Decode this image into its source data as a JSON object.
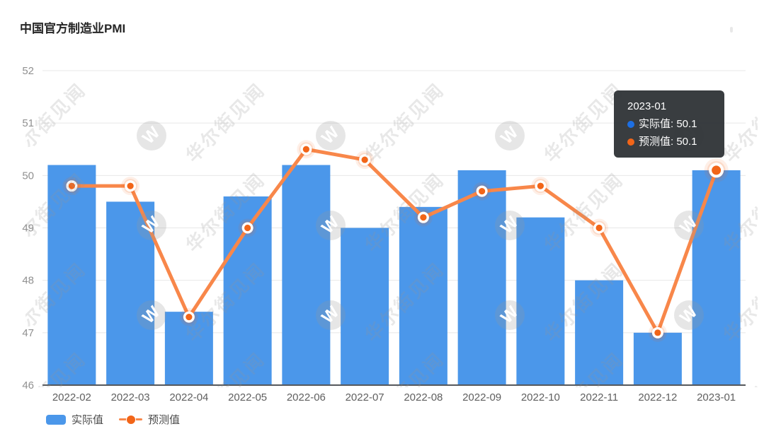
{
  "page": {
    "title": "中国官方制造业PMI"
  },
  "chart_data": {
    "type": "bar",
    "title": "中国官方制造业PMI",
    "categories": [
      "2022-02",
      "2022-03",
      "2022-04",
      "2022-05",
      "2022-06",
      "2022-07",
      "2022-08",
      "2022-09",
      "2022-10",
      "2022-11",
      "2022-12",
      "2023-01"
    ],
    "series": [
      {
        "name": "实际值",
        "type": "bar",
        "color": "#4b97ea",
        "values": [
          50.2,
          49.5,
          47.4,
          49.6,
          50.2,
          49.0,
          49.4,
          50.1,
          49.2,
          48.0,
          47.0,
          50.1
        ]
      },
      {
        "name": "预测值",
        "type": "line",
        "color": "#f8874a",
        "point_color": "#f26518",
        "values": [
          49.8,
          49.8,
          47.3,
          49.0,
          50.5,
          50.3,
          49.2,
          49.7,
          49.8,
          49.0,
          47.0,
          50.1
        ]
      }
    ],
    "ylim": [
      46,
      52
    ],
    "yticks": [
      46,
      47,
      48,
      49,
      50,
      51,
      52
    ],
    "grid": true,
    "legend_position": "bottom-left",
    "highlight_index": 11
  },
  "tooltip": {
    "date": "2023-01",
    "rows": [
      {
        "text": "实际值: 50.1",
        "color": "#1d6fe3"
      },
      {
        "text": "预测值: 50.1",
        "color": "#f26518"
      }
    ]
  },
  "legend": {
    "items": [
      {
        "label": "实际值",
        "marker": "bar-swatch",
        "color": "#4b97ea"
      },
      {
        "label": "预测值",
        "marker": "line-dot",
        "color": "#f8874a",
        "dot_color": "#f26518"
      }
    ]
  },
  "watermark": {
    "text": "华尔街见闻",
    "logo_letter": "W"
  },
  "colors": {
    "bar": "#4b97ea",
    "line": "#f8874a",
    "dot": "#f26518",
    "gridline": "#e7e7e7",
    "axis_line": "#55585c",
    "y_label": "#909090",
    "x_label": "#5f5f5f",
    "tooltip_bg": "rgba(42,46,50,0.93)"
  }
}
